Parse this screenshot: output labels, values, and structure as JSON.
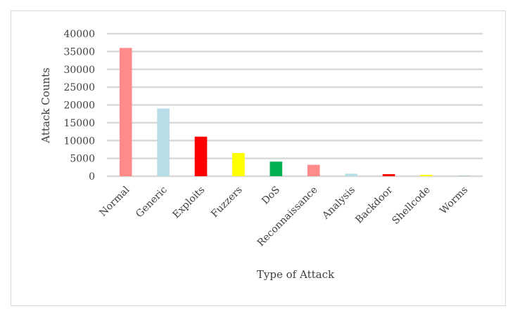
{
  "chart_data": {
    "type": "bar",
    "title": "",
    "xlabel": "Type of Attack",
    "ylabel": "Attack Counts",
    "ylim": [
      0,
      40000
    ],
    "yticks": [
      0,
      5000,
      10000,
      15000,
      20000,
      25000,
      30000,
      35000,
      40000
    ],
    "grid": true,
    "legend": "none",
    "categories": [
      "Normal",
      "Generic",
      "Exploits",
      "Fuzzers",
      "DoS",
      "Reconnaissance",
      "Analysis",
      "Backdoor",
      "Shellcode",
      "Worms"
    ],
    "values": [
      36000,
      19000,
      11100,
      6500,
      4100,
      3200,
      700,
      580,
      380,
      40
    ],
    "colors": [
      "#ff8a8a",
      "#b7dde6",
      "#ff0000",
      "#ffff00",
      "#00b050",
      "#ff8a8a",
      "#b7dde6",
      "#ff0000",
      "#ffff00",
      "#00b050"
    ]
  }
}
